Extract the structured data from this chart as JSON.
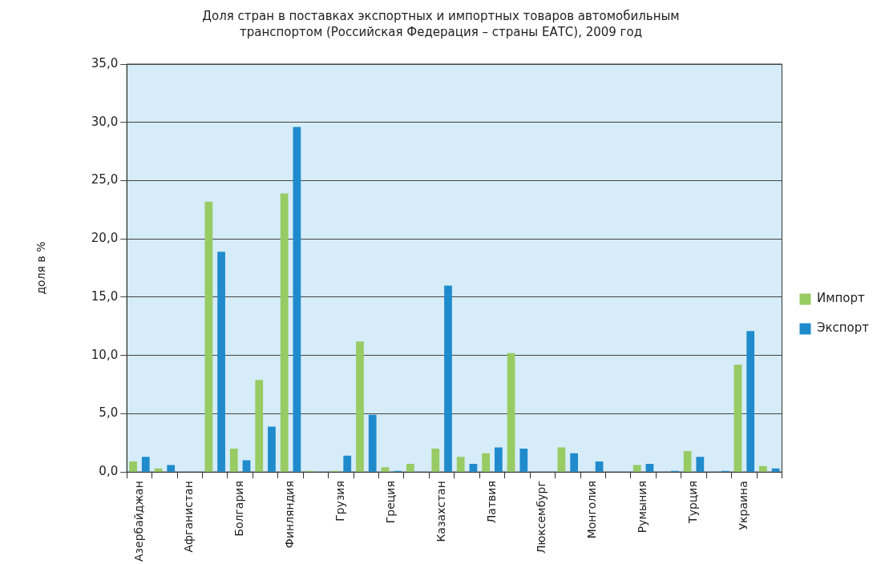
{
  "chart_data": {
    "type": "bar",
    "title": "Доля стран в поставках экспортных и импортных товаров автомобильным транспортом (Российская Федерация – страны ЕАТС), 2009 год",
    "ylabel": "доля в %",
    "categories": [
      "Азербайджан",
      null,
      "Афганистан",
      null,
      "Болгария",
      null,
      "Финляндия",
      null,
      "Грузия",
      null,
      "Греция",
      null,
      "Казахстан",
      null,
      "Латвия",
      null,
      "Люксембург",
      null,
      "Монголия",
      null,
      "Румыния",
      null,
      "Турция",
      null,
      "Украина",
      null
    ],
    "series": [
      {
        "name": "Импорт",
        "color": "#97cb63",
        "values": [
          0.9,
          0.3,
          null,
          23.2,
          2.0,
          7.9,
          23.9,
          0.1,
          0.1,
          11.2,
          0.4,
          0.7,
          2.0,
          1.3,
          1.6,
          10.2,
          null,
          2.1,
          null,
          null,
          0.6,
          null,
          1.8,
          null,
          9.2,
          0.5
        ]
      },
      {
        "name": "Экспорт",
        "color": "#1f8bcd",
        "values": [
          1.3,
          0.6,
          null,
          18.9,
          1.0,
          3.9,
          29.6,
          null,
          1.4,
          4.9,
          0.1,
          null,
          16.0,
          0.7,
          2.1,
          2.0,
          null,
          1.6,
          0.9,
          null,
          0.7,
          0.1,
          1.3,
          0.1,
          12.1,
          0.3
        ]
      }
    ],
    "ylim": [
      0,
      35
    ],
    "yticks": [
      {
        "value": 0,
        "label": "0,0"
      },
      {
        "value": 5,
        "label": "5,0"
      },
      {
        "value": 10,
        "label": "10,0"
      },
      {
        "value": 15,
        "label": "15,0"
      },
      {
        "value": 20,
        "label": "20,0"
      },
      {
        "value": 25,
        "label": "25,0"
      },
      {
        "value": 30,
        "label": "30,0"
      },
      {
        "value": 35,
        "label": "35,0"
      }
    ],
    "grid": "y",
    "legend": "right"
  }
}
